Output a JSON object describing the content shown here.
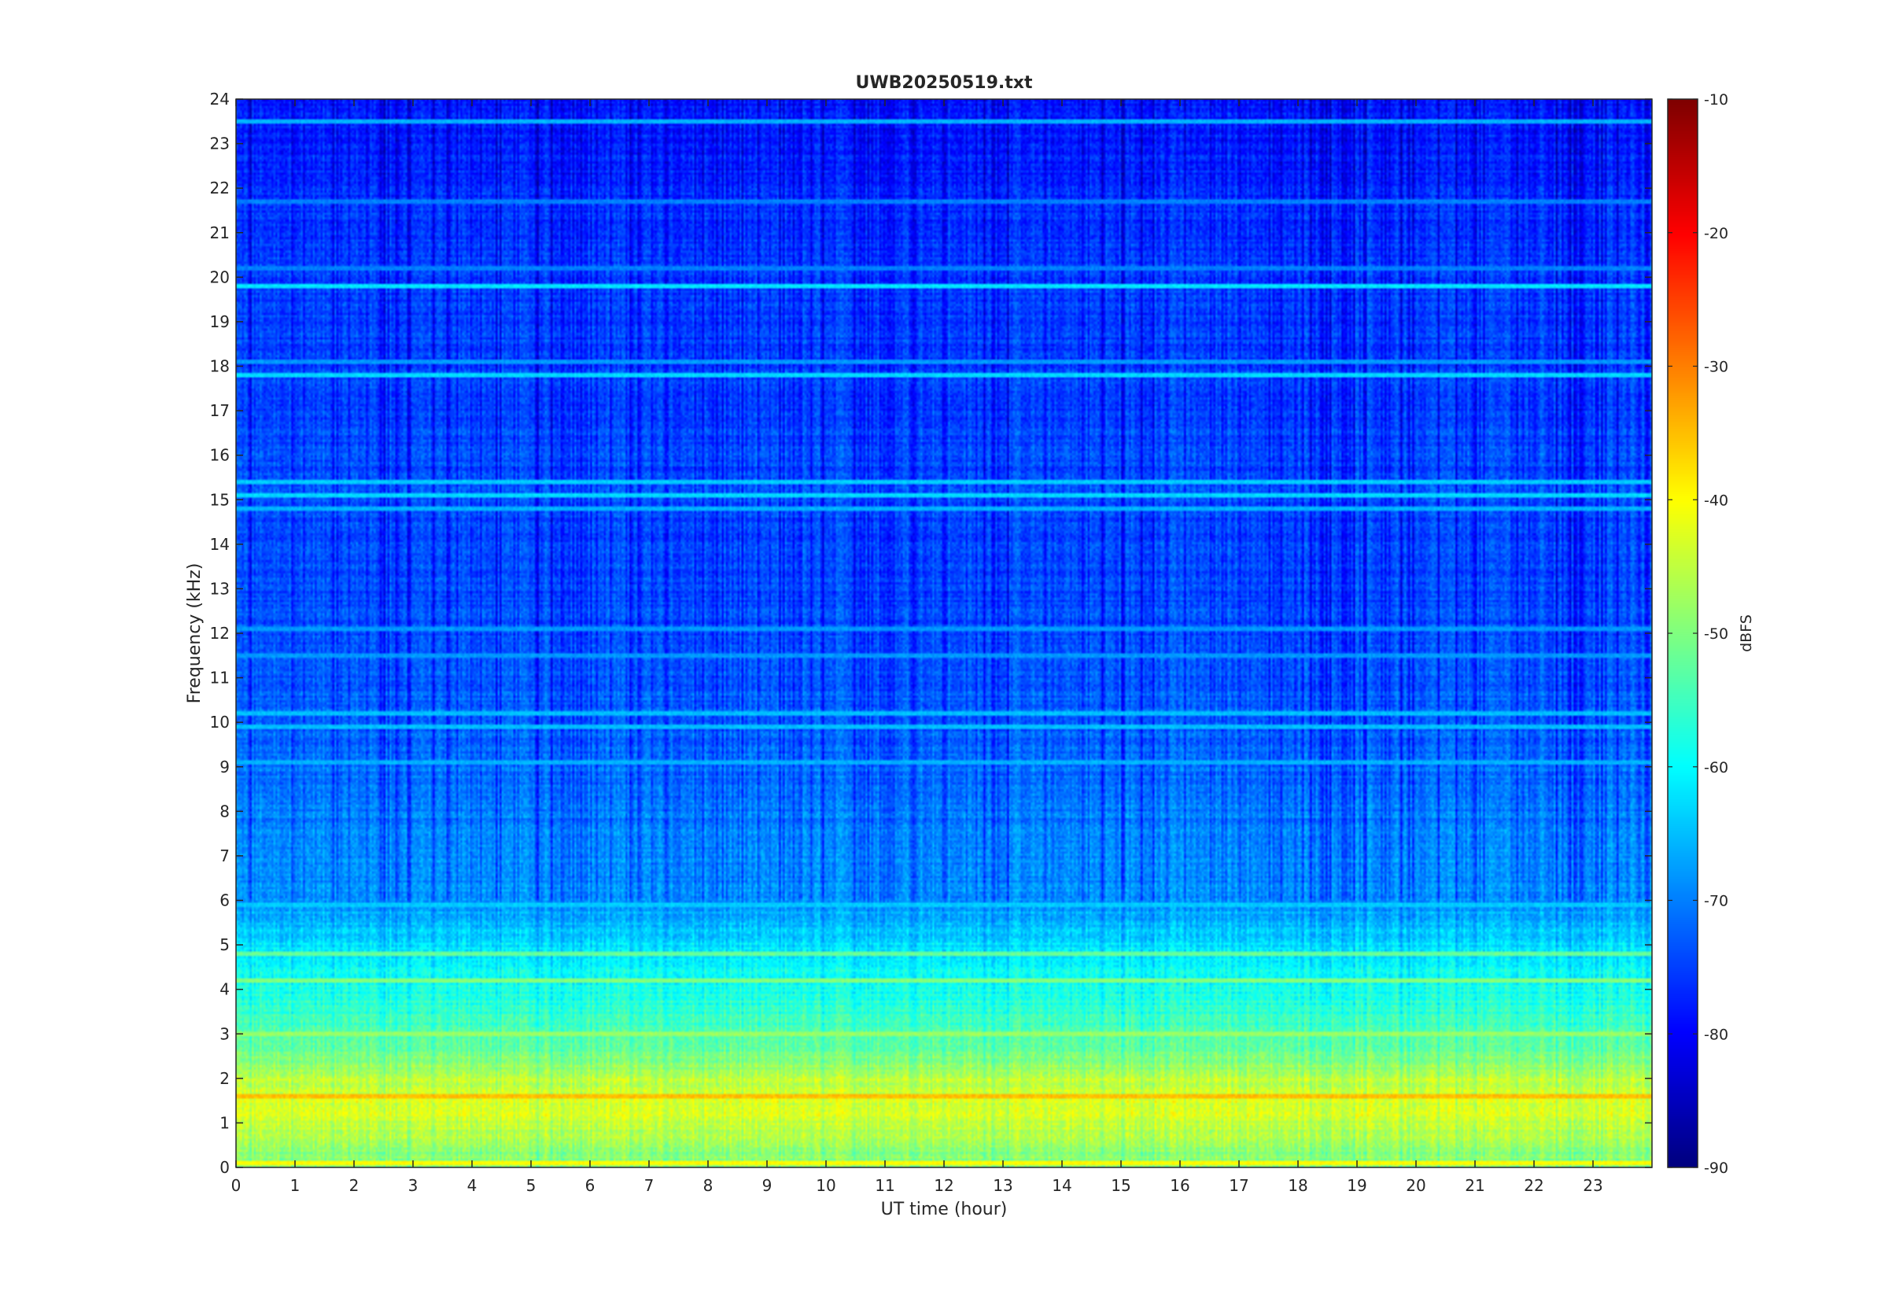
{
  "chart_data": {
    "type": "heatmap",
    "title": "UWB20250519.txt",
    "xlabel": "UT time (hour)",
    "ylabel": "Frequency (kHz)",
    "xlim": [
      0,
      24
    ],
    "ylim": [
      0,
      24
    ],
    "x_ticks": [
      0,
      1,
      2,
      3,
      4,
      5,
      6,
      7,
      8,
      9,
      10,
      11,
      12,
      13,
      14,
      15,
      16,
      17,
      18,
      19,
      20,
      21,
      22,
      23
    ],
    "y_ticks": [
      0,
      1,
      2,
      3,
      4,
      5,
      6,
      7,
      8,
      9,
      10,
      11,
      12,
      13,
      14,
      15,
      16,
      17,
      18,
      19,
      20,
      21,
      22,
      23,
      24
    ],
    "colorbar": {
      "label": "dBFS",
      "colormap": "jet",
      "clim": [
        -90,
        -10
      ],
      "ticks": [
        -10,
        -20,
        -30,
        -40,
        -50,
        -60,
        -70,
        -80,
        -90
      ]
    },
    "grid": false,
    "frequency_profile_dbfs": [
      {
        "freq_khz": 0.0,
        "level": -50
      },
      {
        "freq_khz": 0.5,
        "level": -48
      },
      {
        "freq_khz": 1.0,
        "level": -44
      },
      {
        "freq_khz": 1.5,
        "level": -42
      },
      {
        "freq_khz": 2.0,
        "level": -45
      },
      {
        "freq_khz": 2.5,
        "level": -50
      },
      {
        "freq_khz": 3.0,
        "level": -54
      },
      {
        "freq_khz": 4.0,
        "level": -58
      },
      {
        "freq_khz": 5.0,
        "level": -62
      },
      {
        "freq_khz": 6.0,
        "level": -68
      },
      {
        "freq_khz": 8.0,
        "level": -70
      },
      {
        "freq_khz": 10.0,
        "level": -72
      },
      {
        "freq_khz": 13.0,
        "level": -74
      },
      {
        "freq_khz": 16.0,
        "level": -74
      },
      {
        "freq_khz": 20.0,
        "level": -75
      },
      {
        "freq_khz": 24.0,
        "level": -78
      }
    ],
    "narrowband_lines": [
      {
        "freq_khz": 23.5,
        "level": -66
      },
      {
        "freq_khz": 21.7,
        "level": -70
      },
      {
        "freq_khz": 20.2,
        "level": -70
      },
      {
        "freq_khz": 19.8,
        "level": -62
      },
      {
        "freq_khz": 18.1,
        "level": -68
      },
      {
        "freq_khz": 17.8,
        "level": -63
      },
      {
        "freq_khz": 15.4,
        "level": -64
      },
      {
        "freq_khz": 15.1,
        "level": -63
      },
      {
        "freq_khz": 14.8,
        "level": -66
      },
      {
        "freq_khz": 12.1,
        "level": -68
      },
      {
        "freq_khz": 11.5,
        "level": -68
      },
      {
        "freq_khz": 10.2,
        "level": -65
      },
      {
        "freq_khz": 9.9,
        "level": -65
      },
      {
        "freq_khz": 9.1,
        "level": -66
      },
      {
        "freq_khz": 5.9,
        "level": -64
      },
      {
        "freq_khz": 4.8,
        "level": -52
      },
      {
        "freq_khz": 4.2,
        "level": -50
      },
      {
        "freq_khz": 3.0,
        "level": -48
      },
      {
        "freq_khz": 1.6,
        "level": -35
      },
      {
        "freq_khz": 0.1,
        "level": -40
      }
    ]
  }
}
